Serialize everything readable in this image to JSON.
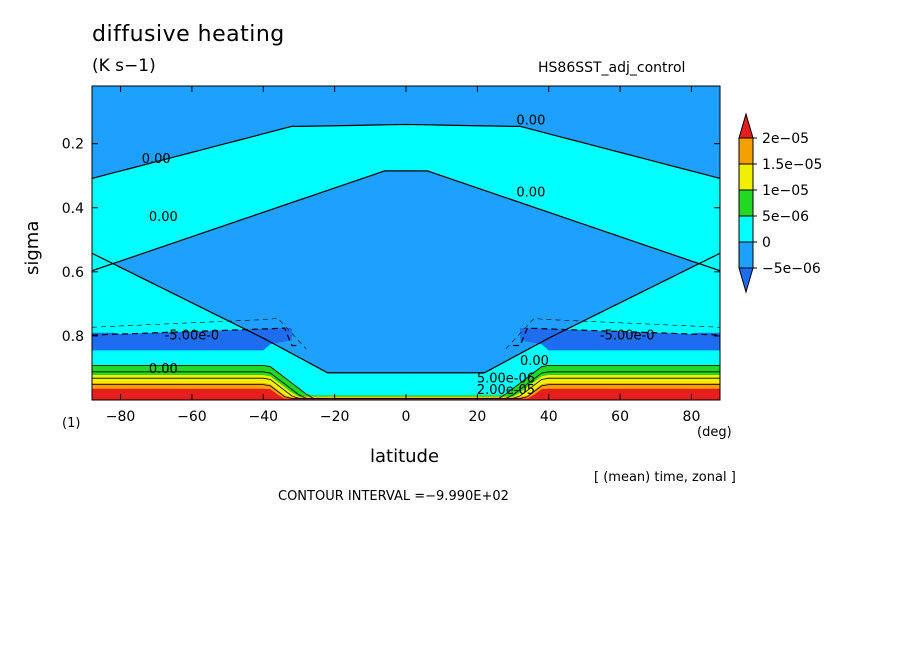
{
  "header": {
    "title": "diffusive heating",
    "units": "(K s−1)",
    "dataset": "HS86SST_adj_control"
  },
  "footer": {
    "contour_interval": "CONTOUR INTERVAL =−9.990E+02",
    "averaging": "[ (mean) time, zonal ]",
    "level_index": "(1)"
  },
  "chart_data": {
    "type": "heatmap",
    "title": "diffusive heating",
    "xlabel": "latitude",
    "x_unit": "(deg)",
    "ylabel": "sigma",
    "xlim": [
      -88,
      88
    ],
    "ylim": [
      1.0,
      0.02
    ],
    "y_reversed": true,
    "x_ticks": [
      -80,
      -60,
      -40,
      -20,
      0,
      20,
      40,
      60,
      80
    ],
    "y_ticks": [
      0.2,
      0.4,
      0.6,
      0.8
    ],
    "colorbar": {
      "levels": [
        "2e-05",
        "1.5e-05",
        "1e-05",
        "5e-06",
        "0",
        "-5e-06"
      ],
      "colors": [
        "#e61e1e",
        "#f4a000",
        "#f0f000",
        "#22d822",
        "#00ffff",
        "#1ea0ff",
        "#1e6cf0"
      ]
    },
    "contour_labels": [
      {
        "text": "0.00",
        "lat": -70,
        "sigma": 0.245
      },
      {
        "text": "0.00",
        "lat": -68,
        "sigma": 0.425
      },
      {
        "text": "0.00",
        "lat": 35,
        "sigma": 0.125
      },
      {
        "text": "0.00",
        "lat": 35,
        "sigma": 0.35
      },
      {
        "text": "-5.00e-0",
        "lat": -60,
        "sigma": 0.795
      },
      {
        "text": "-5.00e-0",
        "lat": 62,
        "sigma": 0.795
      },
      {
        "text": "0.00",
        "lat": -68,
        "sigma": 0.9
      },
      {
        "text": "0.00",
        "lat": 36,
        "sigma": 0.875
      },
      {
        "text": "5.00e-06",
        "lat": 28,
        "sigma": 0.93
      },
      {
        "text": "2.00e-05",
        "lat": 28,
        "sigma": 0.965
      }
    ]
  }
}
